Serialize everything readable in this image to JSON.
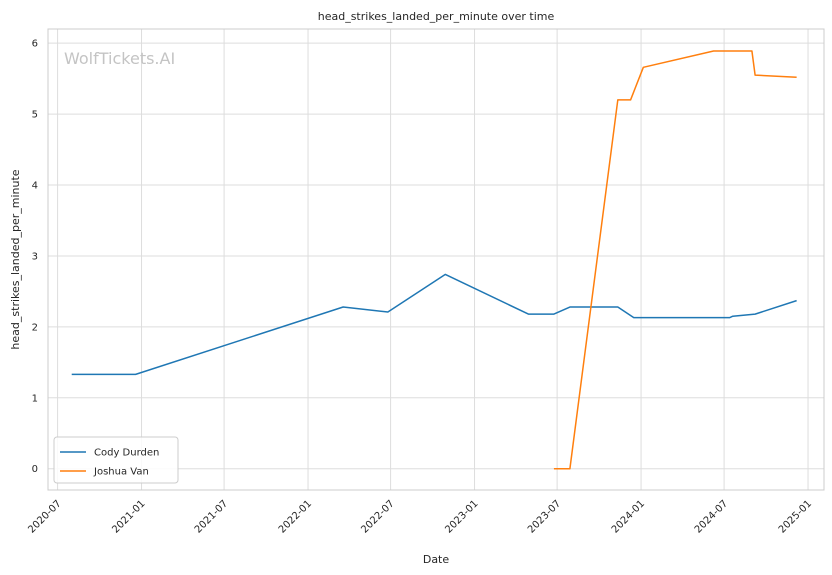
{
  "chart_data": {
    "type": "line",
    "title": "head_strikes_landed_per_minute over time",
    "xlabel": "Date",
    "ylabel": "head_strikes_landed_per_minute",
    "watermark": "WolfTickets.AI",
    "xlim": [
      "2020-06-10",
      "2025-02-05"
    ],
    "ylim": [
      -0.3,
      6.2
    ],
    "x_ticks": [
      "2020-07",
      "2021-01",
      "2021-07",
      "2022-01",
      "2022-07",
      "2023-01",
      "2023-07",
      "2024-01",
      "2024-07",
      "2025-01"
    ],
    "x_tick_labels": [
      "2020-07",
      "2021-01",
      "2021-07",
      "2022-01",
      "2022-07",
      "2023-01",
      "2023-07",
      "2024-01",
      "2024-07",
      "2025-01"
    ],
    "y_ticks": [
      0,
      1,
      2,
      3,
      4,
      5,
      6
    ],
    "y_tick_labels": [
      "0",
      "1",
      "2",
      "3",
      "4",
      "5",
      "6"
    ],
    "grid": true,
    "legend_position": "lower-left",
    "series": [
      {
        "name": "Cody Durden",
        "color": "#1f77b4",
        "points": [
          [
            "2020-08-01",
            1.33
          ],
          [
            "2020-12-19",
            1.33
          ],
          [
            "2022-03-19",
            2.28
          ],
          [
            "2022-06-25",
            2.21
          ],
          [
            "2022-10-29",
            2.74
          ],
          [
            "2023-04-29",
            2.18
          ],
          [
            "2023-06-24",
            2.18
          ],
          [
            "2023-07-29",
            2.28
          ],
          [
            "2023-11-11",
            2.28
          ],
          [
            "2023-12-16",
            2.13
          ],
          [
            "2024-07-13",
            2.13
          ],
          [
            "2024-07-20",
            2.15
          ],
          [
            "2024-09-07",
            2.18
          ],
          [
            "2024-12-07",
            2.37
          ]
        ]
      },
      {
        "name": "Joshua Van",
        "color": "#ff7f0e",
        "points": [
          [
            "2023-06-24",
            0.0
          ],
          [
            "2023-07-29",
            0.0
          ],
          [
            "2023-11-11",
            5.2
          ],
          [
            "2023-12-09",
            5.2
          ],
          [
            "2024-01-06",
            5.66
          ],
          [
            "2024-06-08",
            5.89
          ],
          [
            "2024-08-31",
            5.89
          ],
          [
            "2024-09-07",
            5.55
          ],
          [
            "2024-12-07",
            5.52
          ]
        ]
      }
    ]
  }
}
